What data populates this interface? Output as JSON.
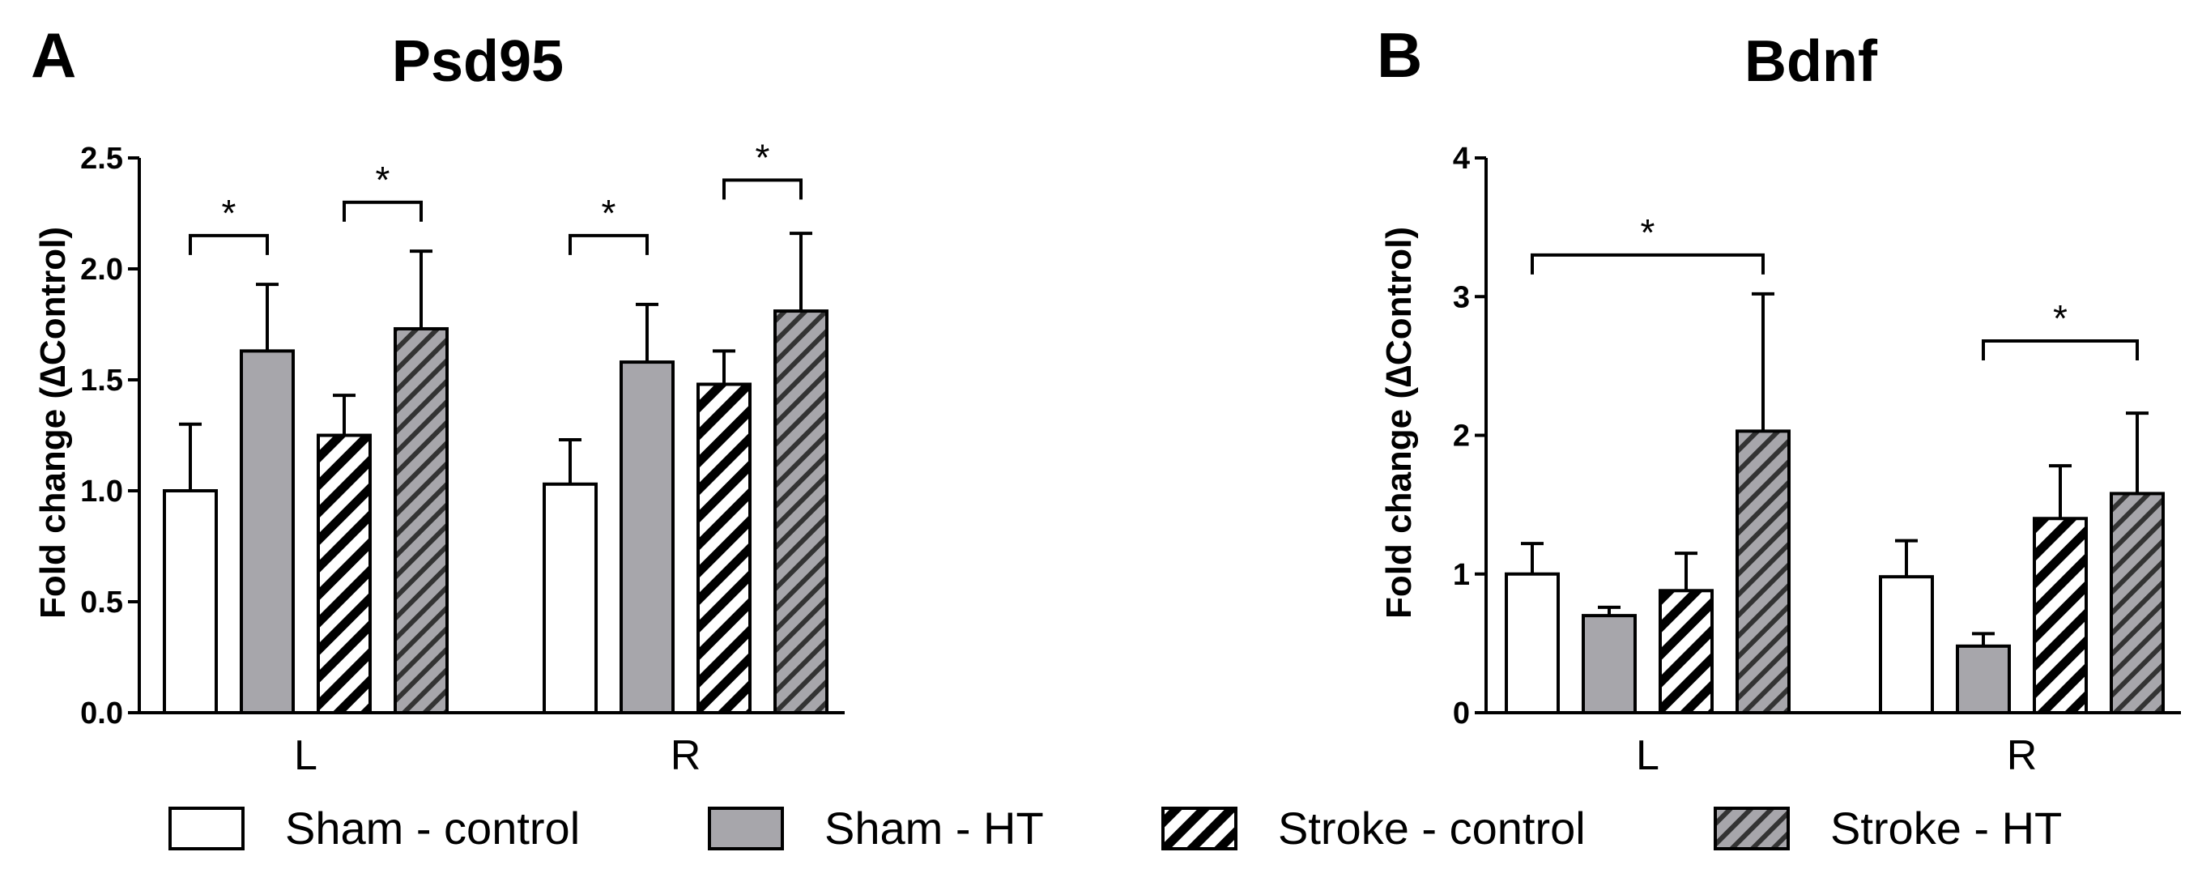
{
  "figure": {
    "legend": [
      {
        "label": "Sham - control",
        "style": "white"
      },
      {
        "label": "Sham - HT",
        "style": "gray"
      },
      {
        "label": "Stroke - control",
        "style": "white-hatch"
      },
      {
        "label": "Stroke - HT",
        "style": "gray-hatch"
      }
    ]
  },
  "colors": {
    "gray_fill": "#a7a6ab",
    "white_fill": "#ffffff",
    "stroke": "#000000"
  },
  "chart_data": [
    {
      "panel": "A",
      "type": "bar",
      "title": "Psd95",
      "xlabel": "",
      "ylabel": "Fold change (∆Control)",
      "ylim": [
        0,
        2.5
      ],
      "yticks": [
        0.0,
        0.5,
        1.0,
        1.5,
        2.0,
        2.5
      ],
      "ytick_labels": [
        "0.0",
        "0.5",
        "1.0",
        "1.5",
        "2.0",
        "2.5"
      ],
      "categories": [
        "L",
        "R"
      ],
      "series": [
        {
          "name": "Sham - control",
          "values": [
            1.0,
            1.03
          ],
          "errors": [
            0.3,
            0.2
          ]
        },
        {
          "name": "Sham - HT",
          "values": [
            1.63,
            1.58
          ],
          "errors": [
            0.3,
            0.26
          ]
        },
        {
          "name": "Stroke - control",
          "values": [
            1.25,
            1.48
          ],
          "errors": [
            0.18,
            0.15
          ]
        },
        {
          "name": "Stroke - HT",
          "values": [
            1.73,
            1.81
          ],
          "errors": [
            0.35,
            0.35
          ]
        }
      ],
      "significance": [
        {
          "category": 0,
          "from": 0,
          "to": 1,
          "y": 2.15,
          "label": "*"
        },
        {
          "category": 0,
          "from": 2,
          "to": 3,
          "y": 2.3,
          "label": "*"
        },
        {
          "category": 1,
          "from": 0,
          "to": 1,
          "y": 2.15,
          "label": "*"
        },
        {
          "category": 1,
          "from": 2,
          "to": 3,
          "y": 2.4,
          "label": "*"
        }
      ]
    },
    {
      "panel": "B",
      "type": "bar",
      "title": "Bdnf",
      "xlabel": "",
      "ylabel": "Fold change (∆Control)",
      "ylim": [
        0,
        4
      ],
      "yticks": [
        0,
        1,
        2,
        3,
        4
      ],
      "ytick_labels": [
        "0",
        "1",
        "2",
        "3",
        "4"
      ],
      "categories": [
        "L",
        "R"
      ],
      "series": [
        {
          "name": "Sham - control",
          "values": [
            1.0,
            0.98
          ],
          "errors": [
            0.22,
            0.26
          ]
        },
        {
          "name": "Sham - HT",
          "values": [
            0.7,
            0.48
          ],
          "errors": [
            0.06,
            0.09
          ]
        },
        {
          "name": "Stroke - control",
          "values": [
            0.88,
            1.4
          ],
          "errors": [
            0.27,
            0.38
          ]
        },
        {
          "name": "Stroke - HT",
          "values": [
            2.03,
            1.58
          ],
          "errors": [
            0.99,
            0.58
          ]
        }
      ],
      "significance": [
        {
          "category": 0,
          "from": 0,
          "to": 3,
          "y": 3.3,
          "label": "*"
        },
        {
          "category": 1,
          "from": 1,
          "to": 3,
          "y": 2.68,
          "label": "*"
        }
      ]
    }
  ]
}
